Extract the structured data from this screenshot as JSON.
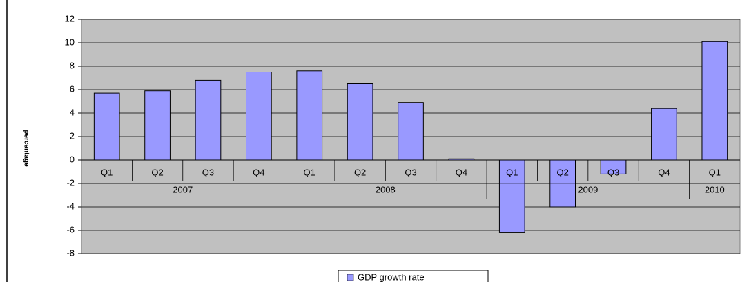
{
  "chart_data": {
    "type": "bar",
    "y_label": "percentage",
    "groups": [
      {
        "name": "2007",
        "categories": [
          "Q1",
          "Q2",
          "Q3",
          "Q4"
        ]
      },
      {
        "name": "2008",
        "categories": [
          "Q1",
          "Q2",
          "Q3",
          "Q4"
        ]
      },
      {
        "name": "2009",
        "categories": [
          "Q1",
          "Q2",
          "Q3",
          "Q4"
        ]
      },
      {
        "name": "2010",
        "categories": [
          "Q1"
        ]
      }
    ],
    "series": [
      {
        "name": "GDP growth rate",
        "color": "#9999ff",
        "values": [
          5.7,
          5.9,
          6.8,
          7.5,
          7.6,
          6.5,
          4.9,
          0.1,
          -6.2,
          -4.0,
          -1.2,
          4.4,
          10.1
        ]
      }
    ],
    "ylim": [
      -8,
      12
    ],
    "yticks": [
      -8,
      -6,
      -4,
      -2,
      0,
      2,
      4,
      6,
      8,
      10,
      12
    ],
    "grid": true,
    "legend": "bottom"
  }
}
